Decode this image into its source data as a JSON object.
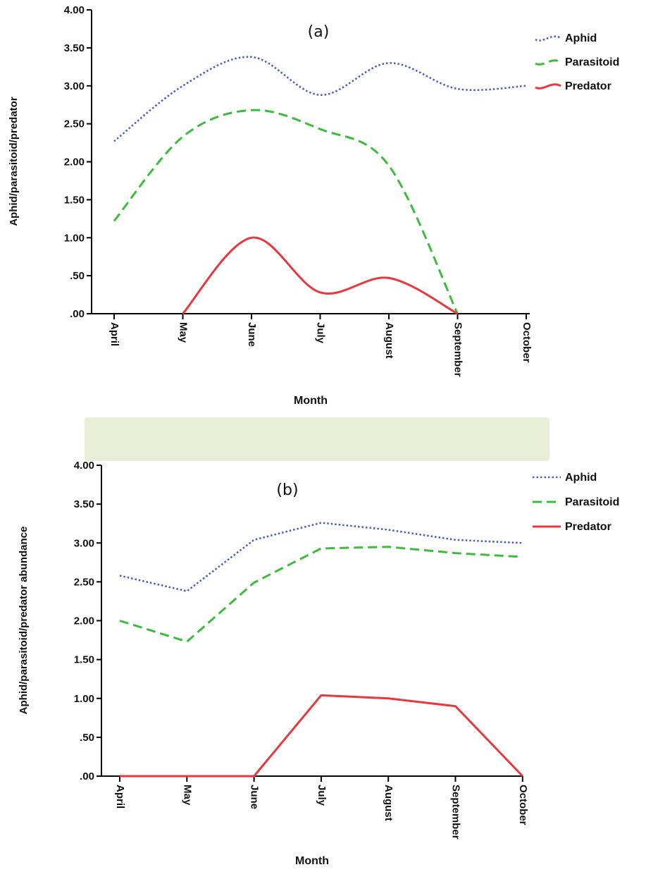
{
  "colors": {
    "aphid": "#4a5fc1",
    "parasitoid": "#3dbb3d",
    "predator": "#e8383d",
    "axis": "#000000"
  },
  "chart_data": [
    {
      "type": "line",
      "panel_label": "(a)",
      "xlabel": "Month",
      "ylabel": "Aphid/parasitoid/predator",
      "ylim": [
        0,
        4
      ],
      "yticks": [
        ".00",
        ".50",
        "1.00",
        "1.50",
        "2.00",
        "2.50",
        "3.00",
        "3.50",
        "4.00"
      ],
      "categories": [
        "April",
        "May",
        "June",
        "July",
        "August",
        "September",
        "October"
      ],
      "legend_position": "top-right",
      "smooth": true,
      "series": [
        {
          "name": "Aphid",
          "style": "dotted",
          "values": [
            2.27,
            3.0,
            3.38,
            2.88,
            3.3,
            2.96,
            3.0
          ]
        },
        {
          "name": "Parasitoid",
          "style": "dashed",
          "values": [
            1.22,
            2.33,
            2.68,
            2.43,
            1.95,
            0.0,
            null
          ]
        },
        {
          "name": "Predator",
          "style": "solid",
          "values": [
            null,
            0.0,
            1.0,
            0.28,
            0.47,
            0.0,
            null
          ]
        }
      ]
    },
    {
      "type": "line",
      "panel_label": "(b)",
      "xlabel": "Month",
      "ylabel": "Aphid/parasitoid/predator abundance",
      "ylim": [
        0,
        4
      ],
      "yticks": [
        ".00",
        ".50",
        "1.00",
        "1.50",
        "2.00",
        "2.50",
        "3.00",
        "3.50",
        "4.00"
      ],
      "categories": [
        "April",
        "May",
        "June",
        "July",
        "August",
        "September",
        "October"
      ],
      "legend_position": "top-right",
      "smooth": false,
      "series": [
        {
          "name": "Aphid",
          "style": "dotted",
          "values": [
            2.58,
            2.38,
            3.04,
            3.26,
            3.17,
            3.04,
            3.0
          ]
        },
        {
          "name": "Parasitoid",
          "style": "dashed",
          "values": [
            2.0,
            1.73,
            2.49,
            2.93,
            2.95,
            2.87,
            2.82
          ]
        },
        {
          "name": "Predator",
          "style": "solid",
          "values": [
            0.0,
            0.0,
            0.0,
            1.04,
            1.0,
            0.9,
            0.0
          ]
        }
      ]
    }
  ]
}
